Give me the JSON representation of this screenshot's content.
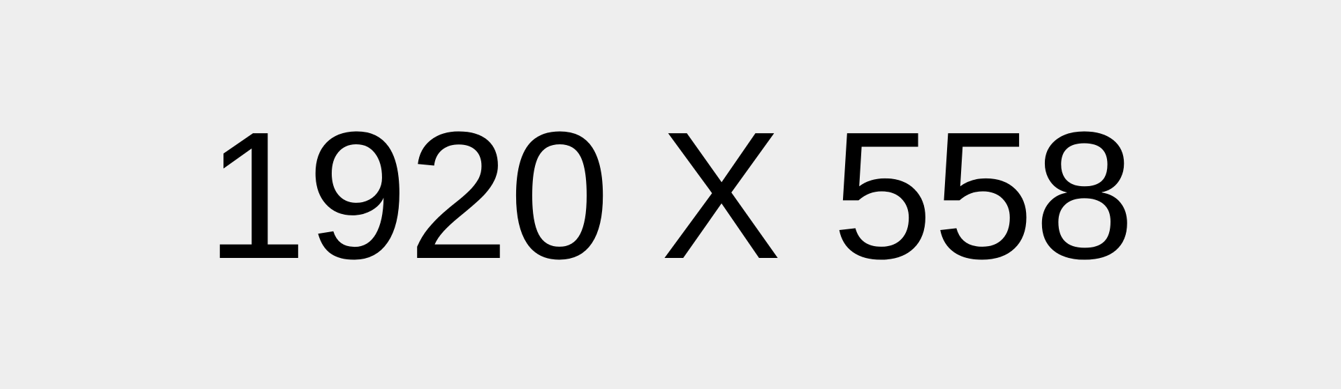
{
  "placeholder": {
    "text": "1920 X 558"
  },
  "colors": {
    "background": "#eeeeee",
    "text": "#000000"
  }
}
